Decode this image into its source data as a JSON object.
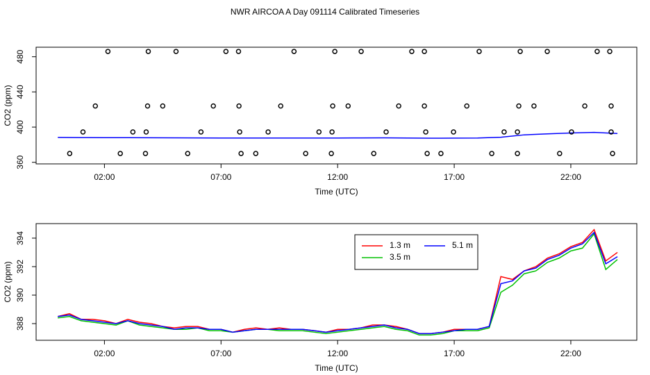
{
  "title": "NWR AIRCOA A  Day 091114  Calibrated Timeseries",
  "chart_data": [
    {
      "type": "line",
      "xlabel": "Time (UTC)",
      "ylabel": "CO2 (ppm)",
      "xlim": [
        -0.93,
        24.83
      ],
      "ylim": [
        358.2,
        490.8
      ],
      "xticks": [
        {
          "value": 2,
          "label": "02:00"
        },
        {
          "value": 7,
          "label": "07:00"
        },
        {
          "value": 12,
          "label": "12:00"
        },
        {
          "value": 17,
          "label": "17:00"
        },
        {
          "value": 22,
          "label": "22:00"
        }
      ],
      "yticks": [
        360,
        400,
        440,
        480
      ],
      "x": [
        0,
        1,
        2,
        3,
        4,
        5,
        6,
        7,
        8,
        9,
        10,
        11,
        12,
        13,
        14,
        15,
        16,
        17,
        18,
        19,
        20,
        21,
        22,
        23,
        24
      ],
      "series": [
        {
          "color": "#0000ff",
          "values": [
            388.3,
            388.1,
            388.0,
            388.0,
            387.9,
            387.8,
            387.7,
            387.6,
            387.6,
            387.6,
            387.6,
            387.6,
            387.6,
            387.7,
            387.8,
            387.6,
            387.4,
            387.5,
            387.6,
            388.5,
            391.2,
            392.3,
            393.3,
            394.0,
            392.7
          ]
        }
      ],
      "markers": {
        "color": "#000000",
        "x": [
          2.15,
          3.88,
          5.07,
          7.21,
          7.75,
          10.13,
          11.88,
          13.01,
          15.18,
          15.72,
          18.07,
          19.83,
          20.99,
          23.13,
          23.67,
          1.61,
          3.85,
          4.5,
          6.67,
          7.77,
          9.56,
          11.79,
          12.45,
          14.62,
          15.72,
          17.54,
          19.77,
          20.42,
          22.6,
          23.73,
          1.08,
          3.22,
          3.79,
          6.14,
          7.8,
          9.02,
          11.2,
          11.76,
          14.08,
          15.78,
          16.97,
          19.14,
          19.71,
          22.03,
          23.73,
          0.51,
          2.68,
          3.76,
          5.57,
          7.86,
          8.49,
          10.63,
          11.73,
          13.55,
          15.84,
          16.43,
          18.61,
          19.71,
          21.52,
          23.79
        ],
        "values": [
          486,
          486,
          486,
          486,
          486,
          486,
          486,
          486,
          486,
          486,
          486,
          486,
          486,
          486,
          486,
          424,
          424,
          424,
          424,
          424,
          424,
          424,
          424,
          424,
          424,
          424,
          424,
          424,
          424,
          424,
          394.5,
          394.5,
          394.5,
          394.5,
          394.5,
          394.5,
          394.5,
          394.5,
          394.5,
          394.5,
          394.5,
          394.5,
          394.5,
          394.5,
          394.5,
          370,
          370,
          370,
          370,
          370,
          370,
          370,
          370,
          370,
          370,
          370,
          370,
          370,
          370,
          370
        ]
      }
    },
    {
      "type": "line",
      "xlabel": "Time (UTC)",
      "ylabel": "CO2 (ppm)",
      "xlim": [
        -0.93,
        24.83
      ],
      "ylim": [
        386.83,
        395.02
      ],
      "xticks": [
        {
          "value": 2,
          "label": "02:00"
        },
        {
          "value": 7,
          "label": "07:00"
        },
        {
          "value": 12,
          "label": "12:00"
        },
        {
          "value": 17,
          "label": "17:00"
        },
        {
          "value": 22,
          "label": "22:00"
        }
      ],
      "yticks": [
        388,
        390,
        392,
        394
      ],
      "legend": "top",
      "x": [
        0,
        0.5,
        1,
        1.5,
        2,
        2.5,
        3,
        3.5,
        4,
        4.5,
        5,
        5.5,
        6,
        6.5,
        7,
        7.5,
        8,
        8.5,
        9,
        9.5,
        10,
        10.5,
        11,
        11.5,
        12,
        12.5,
        13,
        13.5,
        14,
        14.5,
        15,
        15.5,
        16,
        16.5,
        17,
        17.5,
        18,
        18.5,
        19,
        19.5,
        20,
        20.5,
        21,
        21.5,
        22,
        22.5,
        23,
        23.5,
        24
      ],
      "series": [
        {
          "name": "1.3 m",
          "color": "#ff0000",
          "values": [
            388.5,
            388.7,
            388.3,
            388.3,
            388.2,
            388.0,
            388.3,
            388.1,
            388.0,
            387.8,
            387.7,
            387.8,
            387.8,
            387.6,
            387.6,
            387.4,
            387.6,
            387.7,
            387.6,
            387.7,
            387.6,
            387.6,
            387.5,
            387.4,
            387.6,
            387.6,
            387.7,
            387.9,
            387.9,
            387.8,
            387.6,
            387.3,
            387.3,
            387.4,
            387.6,
            387.6,
            387.6,
            387.8,
            391.3,
            391.1,
            391.7,
            392.0,
            392.6,
            392.9,
            393.4,
            393.7,
            394.6,
            392.4,
            393.0
          ]
        },
        {
          "name": "3.5 m",
          "color": "#00c000",
          "values": [
            388.4,
            388.5,
            388.2,
            388.1,
            388.0,
            387.9,
            388.2,
            387.9,
            387.8,
            387.7,
            387.6,
            387.6,
            387.7,
            387.5,
            387.5,
            387.4,
            387.5,
            387.6,
            387.6,
            387.5,
            387.5,
            387.5,
            387.4,
            387.3,
            387.4,
            387.5,
            387.6,
            387.7,
            387.8,
            387.6,
            387.5,
            387.2,
            387.2,
            387.3,
            387.5,
            387.5,
            387.5,
            387.7,
            390.2,
            390.7,
            391.5,
            391.7,
            392.3,
            392.6,
            393.1,
            393.3,
            394.3,
            391.8,
            392.5
          ]
        },
        {
          "name": "5.1 m",
          "color": "#0000ff",
          "values": [
            388.5,
            388.6,
            388.3,
            388.2,
            388.1,
            388.0,
            388.2,
            388.0,
            387.9,
            387.8,
            387.6,
            387.7,
            387.7,
            387.6,
            387.6,
            387.4,
            387.5,
            387.6,
            387.6,
            387.6,
            387.6,
            387.6,
            387.5,
            387.4,
            387.5,
            387.6,
            387.7,
            387.8,
            387.9,
            387.7,
            387.6,
            387.3,
            387.3,
            387.4,
            387.5,
            387.6,
            387.6,
            387.8,
            390.8,
            391.0,
            391.7,
            391.9,
            392.5,
            392.8,
            393.3,
            393.6,
            394.4,
            392.2,
            392.7
          ]
        }
      ]
    }
  ]
}
